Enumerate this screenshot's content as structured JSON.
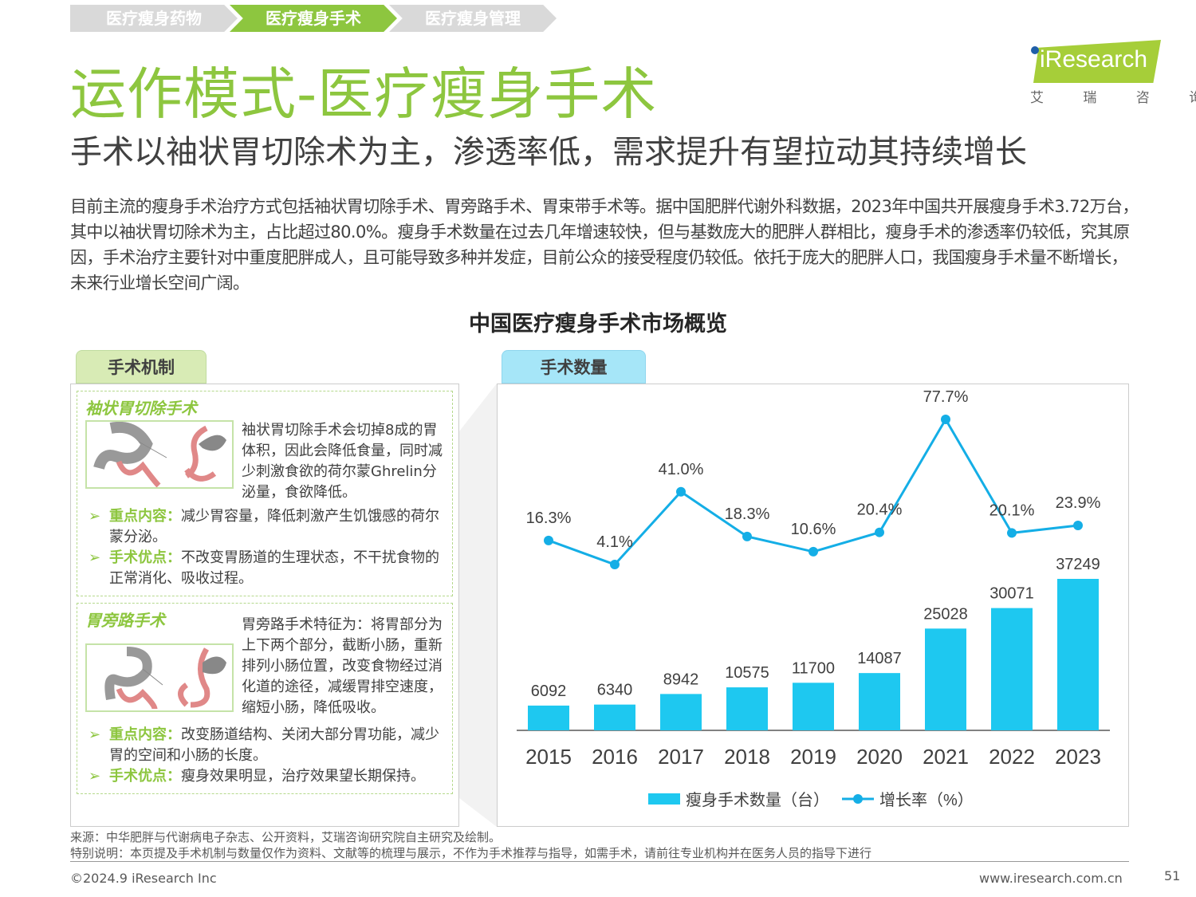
{
  "breadcrumb": [
    {
      "label": "医疗瘦身药物",
      "active": false
    },
    {
      "label": "医疗瘦身手术",
      "active": true
    },
    {
      "label": "医疗瘦身管理",
      "active": false
    }
  ],
  "logo": {
    "brand": "iResearch",
    "cn": "艾 瑞 咨 询"
  },
  "title": "运作模式-医疗瘦身手术",
  "subtitle": "手术以袖状胃切除术为主，渗透率低，需求提升有望拉动其持续增长",
  "paragraph": "目前主流的瘦身手术治疗方式包括袖状胃切除手术、胃旁路手术、胃束带手术等。据中国肥胖代谢外科数据，2023年中国共开展瘦身手术3.72万台，其中以袖状胃切除术为主，占比超过80.0%。瘦身手术数量在过去几年增速较快，但与基数庞大的肥胖人群相比，瘦身手术的渗透率仍较低，究其原因，手术治疗主要针对中重度肥胖成人，且可能导致多种并发症，目前公众的接受程度仍较低。依托于庞大的肥胖人口，我国瘦身手术量不断增长，未来行业增长空间广阔。",
  "section_title": "中国医疗瘦身手术市场概览",
  "left": {
    "tab": "手术机制",
    "surgeries": [
      {
        "name": "袖状胃切除手术",
        "desc": "袖状胃切除手术会切掉8成的胃体积，因此会降低食量，同时减少刺激食欲的荷尔蒙Ghrelin分泌量，食欲降低。",
        "points": [
          {
            "label": "重点内容：",
            "text": "减少胃容量，降低刺激产生饥饿感的荷尔蒙分泌。"
          },
          {
            "label": "手术优点：",
            "text": "不改变胃肠道的生理状态，不干扰食物的正常消化、吸收过程。"
          }
        ]
      },
      {
        "name": "胃旁路手术",
        "desc": "胃旁路手术特征为：将胃部分为上下两个部分，截断小肠，重新排列小肠位置，改变食物经过消化道的途径，减缓胃排空速度，缩短小肠，降低吸收。",
        "points": [
          {
            "label": "重点内容：",
            "text": "改变肠道结构、关闭大部分胃功能，减少胃的空间和小肠的长度。"
          },
          {
            "label": "手术优点：",
            "text": "瘦身效果明显，治疗效果望长期保持。"
          }
        ]
      }
    ]
  },
  "right": {
    "tab": "手术数量"
  },
  "chart_data": {
    "type": "bar+line",
    "categories": [
      "2015",
      "2016",
      "2017",
      "2018",
      "2019",
      "2020",
      "2021",
      "2022",
      "2023"
    ],
    "series": [
      {
        "name": "瘦身手术数量（台）",
        "type": "bar",
        "values": [
          6092,
          6340,
          8942,
          10575,
          11700,
          14087,
          25028,
          30071,
          37249
        ],
        "labels": [
          "6092",
          "6340",
          "8942",
          "10575",
          "11700",
          "14087",
          "25028",
          "30071",
          "37249"
        ]
      },
      {
        "name": "增长率（%）",
        "type": "line",
        "values": [
          16.3,
          4.1,
          41.0,
          18.3,
          10.6,
          20.4,
          77.7,
          20.1,
          23.9
        ],
        "labels": [
          "16.3%",
          "4.1%",
          "41.0%",
          "18.3%",
          "10.6%",
          "20.4%",
          "77.7%",
          "20.1%",
          "23.9%"
        ]
      }
    ],
    "legend": "bottom",
    "colors": {
      "bar": "#1ec8f0",
      "line": "#14aee6"
    }
  },
  "footer": {
    "source": "来源：中华肥胖与代谢病电子杂志、公开资料，艾瑞咨询研究院自主研究及绘制。",
    "note": "特别说明：本页提及手术机制与数量仅作为资料、文献等的梳理与展示，不作为手术推荐与指导，如需手术，请前往专业机构并在医务人员的指导下进行",
    "copyright": "©2024.9 iResearch Inc",
    "website": "www.iresearch.com.cn",
    "page": "51"
  }
}
